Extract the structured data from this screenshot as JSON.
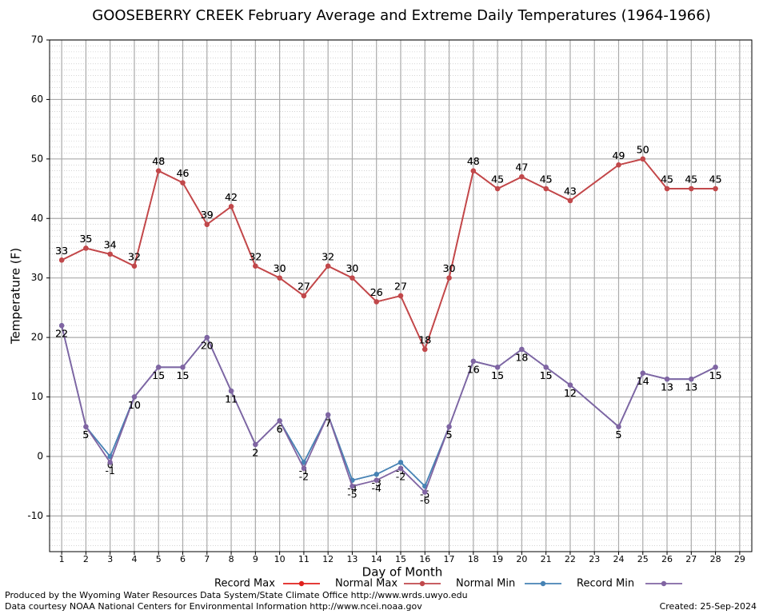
{
  "chart_data": {
    "type": "line",
    "title": "GOOSEBERRY CREEK February Average and Extreme Daily Temperatures (1964-1966)",
    "x_label": "Day of Month",
    "y_label": "Temperature (F)",
    "x": [
      1,
      2,
      3,
      4,
      5,
      6,
      7,
      8,
      9,
      10,
      11,
      12,
      13,
      14,
      15,
      16,
      17,
      18,
      19,
      20,
      21,
      22,
      24,
      25,
      26,
      27,
      28
    ],
    "series": [
      {
        "name": "Record Max",
        "color": "#e0201c",
        "values": [
          33,
          35,
          34,
          32,
          48,
          46,
          39,
          42,
          32,
          30,
          27,
          32,
          30,
          26,
          27,
          18,
          30,
          48,
          45,
          47,
          45,
          43,
          49,
          50,
          45,
          45,
          45
        ]
      },
      {
        "name": "Normal Max",
        "color": "#c0484b",
        "values": [
          33,
          35,
          34,
          32,
          48,
          46,
          39,
          42,
          32,
          30,
          27,
          32,
          30,
          26,
          27,
          18,
          30,
          48,
          45,
          47,
          45,
          43,
          49,
          50,
          45,
          45,
          45
        ]
      },
      {
        "name": "Normal Min",
        "color": "#4682b4",
        "values": [
          22,
          5,
          0,
          10,
          15,
          15,
          20,
          11,
          2,
          6,
          -1,
          7,
          -4,
          -3,
          -1,
          -5,
          5,
          16,
          15,
          18,
          15,
          12,
          5,
          14,
          13,
          13,
          15
        ]
      },
      {
        "name": "Record Min",
        "color": "#8064a2",
        "values": [
          22,
          5,
          -1,
          10,
          15,
          15,
          20,
          11,
          2,
          6,
          -2,
          7,
          -5,
          -4,
          -2,
          -6,
          5,
          16,
          15,
          18,
          15,
          12,
          5,
          14,
          13,
          13,
          15
        ]
      }
    ],
    "xlim": [
      0.5,
      29.5
    ],
    "xticks": [
      1,
      2,
      3,
      4,
      5,
      6,
      7,
      8,
      9,
      10,
      11,
      12,
      13,
      14,
      15,
      16,
      17,
      18,
      19,
      20,
      21,
      22,
      23,
      24,
      25,
      26,
      27,
      28,
      29
    ],
    "ylim": [
      -16,
      70
    ],
    "yticks": [
      -10,
      0,
      10,
      20,
      30,
      40,
      50,
      60,
      70
    ],
    "grid": true,
    "legend": "bottom"
  },
  "footer": {
    "produced": "Produced by the Wyoming Water Resources Data System/State Climate Office http://www.wrds.uwyo.edu",
    "courtesy": "Data courtesy NOAA National Centers for Environmental Information http://www.ncei.noaa.gov",
    "created": "Created:  25-Sep-2024"
  }
}
